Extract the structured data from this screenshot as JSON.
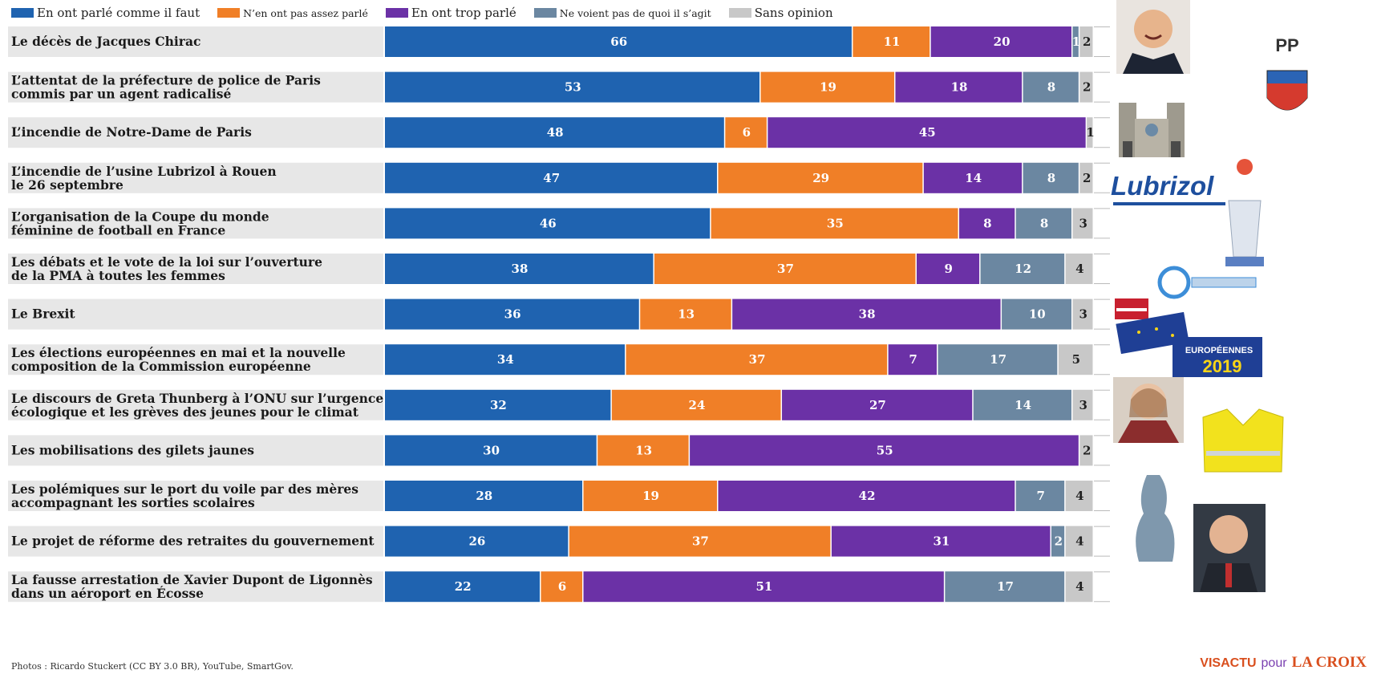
{
  "legend": [
    {
      "label": "En ont parlé comme il faut",
      "color": "#1f63b0"
    },
    {
      "label": "N’en ont pas assez parlé",
      "color": "#f07f27"
    },
    {
      "label": "En ont trop parlé",
      "color": "#6b31a6"
    },
    {
      "label": "Ne voient pas de quoi il s’agit",
      "color": "#6b87a1"
    },
    {
      "label": "Sans opinion",
      "color": "#c8c8c8"
    }
  ],
  "chart_data": {
    "type": "bar",
    "orientation": "horizontal",
    "stacked": true,
    "xlim": [
      0,
      100
    ],
    "categories": [
      [
        "Le décès de Jacques Chirac"
      ],
      [
        "L’attentat de la préfecture de police de Paris",
        "commis par un agent radicalisé"
      ],
      [
        "L’incendie de Notre-Dame de Paris"
      ],
      [
        "L’incendie de l’usine Lubrizol à Rouen",
        "le 26 septembre"
      ],
      [
        "L’organisation de la Coupe du monde",
        "féminine de football en France"
      ],
      [
        "Les débats et le vote de la loi sur l’ouverture",
        "de la PMA à toutes les femmes"
      ],
      [
        "Le Brexit"
      ],
      [
        "Les élections européennes en mai et la nouvelle",
        "composition de la Commission européenne"
      ],
      [
        "Le discours de Greta Thunberg à l’ONU sur l’urgence",
        "écologique et les grèves des jeunes pour le climat"
      ],
      [
        "Les mobilisations des gilets jaunes"
      ],
      [
        "Les polémiques sur le port du voile par des mères",
        "accompagnant les sorties scolaires"
      ],
      [
        "Le projet de réforme des retraites du gouvernement"
      ],
      [
        "La fausse arrestation de Xavier Dupont de Ligonnès",
        "dans un aéroport en Écosse"
      ]
    ],
    "series": [
      {
        "name": "En ont parlé comme il faut",
        "color": "#1f63b0",
        "values": [
          66,
          53,
          48,
          47,
          46,
          38,
          36,
          34,
          32,
          30,
          28,
          26,
          22
        ]
      },
      {
        "name": "N’en ont pas assez parlé",
        "color": "#f07f27",
        "values": [
          11,
          19,
          6,
          29,
          35,
          37,
          13,
          37,
          24,
          13,
          19,
          37,
          6
        ]
      },
      {
        "name": "En ont trop parlé",
        "color": "#6b31a6",
        "values": [
          20,
          18,
          45,
          14,
          8,
          9,
          38,
          7,
          27,
          55,
          42,
          31,
          51
        ]
      },
      {
        "name": "Ne voient pas de quoi il s’agit",
        "color": "#6b87a1",
        "values": [
          1,
          8,
          0,
          8,
          8,
          12,
          10,
          17,
          14,
          0,
          7,
          2,
          17
        ]
      },
      {
        "name": "Sans opinion",
        "color": "#c8c8c8",
        "values": [
          2,
          2,
          1,
          2,
          3,
          4,
          3,
          5,
          3,
          2,
          4,
          4,
          4
        ]
      }
    ]
  },
  "footer": {
    "credits": "Photos : Ricardo Stuckert (CC BY 3.0 BR), YouTube, SmartGov.",
    "brand_visactu": "VISACTU",
    "brand_pour": "pour",
    "brand_lacroix": "LA CROIX"
  },
  "logos": {
    "pp": "PP",
    "lubrizol": "Lubrizol",
    "europeennes": "EUROPÉENNES",
    "year": "2019"
  }
}
